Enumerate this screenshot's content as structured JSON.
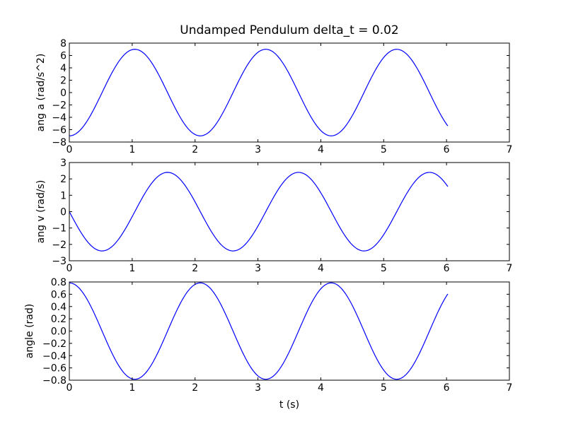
{
  "chart_data": [
    {
      "type": "line",
      "title": "Undamped Pendulum  delta_t = 0.02",
      "xlabel": "",
      "ylabel": "ang a (rad/s^2)",
      "xlim": [
        0,
        7
      ],
      "ylim": [
        -8,
        8
      ],
      "xticks": [
        "0",
        "1",
        "2",
        "3",
        "4",
        "5",
        "6",
        "7"
      ],
      "yticks": [
        "−8",
        "−6",
        "−4",
        "−2",
        "0",
        "2",
        "4",
        "6",
        "8"
      ],
      "grid": false,
      "line_color": "#0000ff",
      "series": [
        {
          "function": "-amplitude*cos(omega*t)",
          "amplitude": 7.0,
          "omega": 3.0162,
          "t_start": 0,
          "t_end": 6.02,
          "t_step": 0.02
        }
      ]
    },
    {
      "type": "line",
      "title": "",
      "xlabel": "",
      "ylabel": "ang v (rad/s)",
      "xlim": [
        0,
        7
      ],
      "ylim": [
        -3,
        3
      ],
      "xticks": [
        "0",
        "1",
        "2",
        "3",
        "4",
        "5",
        "6",
        "7"
      ],
      "yticks": [
        "−3",
        "−2",
        "−1",
        "0",
        "1",
        "2",
        "3"
      ],
      "grid": false,
      "line_color": "#0000ff",
      "series": [
        {
          "function": "-amplitude*sin(omega*t)",
          "amplitude": 2.4,
          "omega": 3.0162,
          "t_start": 0,
          "t_end": 6.02,
          "t_step": 0.02
        }
      ]
    },
    {
      "type": "line",
      "title": "",
      "xlabel": "t (s)",
      "ylabel": "angle (rad)",
      "xlim": [
        0,
        7
      ],
      "ylim": [
        -0.8,
        0.8
      ],
      "xticks": [
        "0",
        "1",
        "2",
        "3",
        "4",
        "5",
        "6",
        "7"
      ],
      "yticks": [
        "−0.8",
        "−0.6",
        "−0.4",
        "−0.2",
        "0.0",
        "0.2",
        "0.4",
        "0.6",
        "0.8"
      ],
      "grid": false,
      "line_color": "#0000ff",
      "series": [
        {
          "function": "amplitude*cos(omega*t)",
          "amplitude": 0.785,
          "omega": 3.0162,
          "t_start": 0,
          "t_end": 6.02,
          "t_step": 0.02
        }
      ]
    }
  ]
}
